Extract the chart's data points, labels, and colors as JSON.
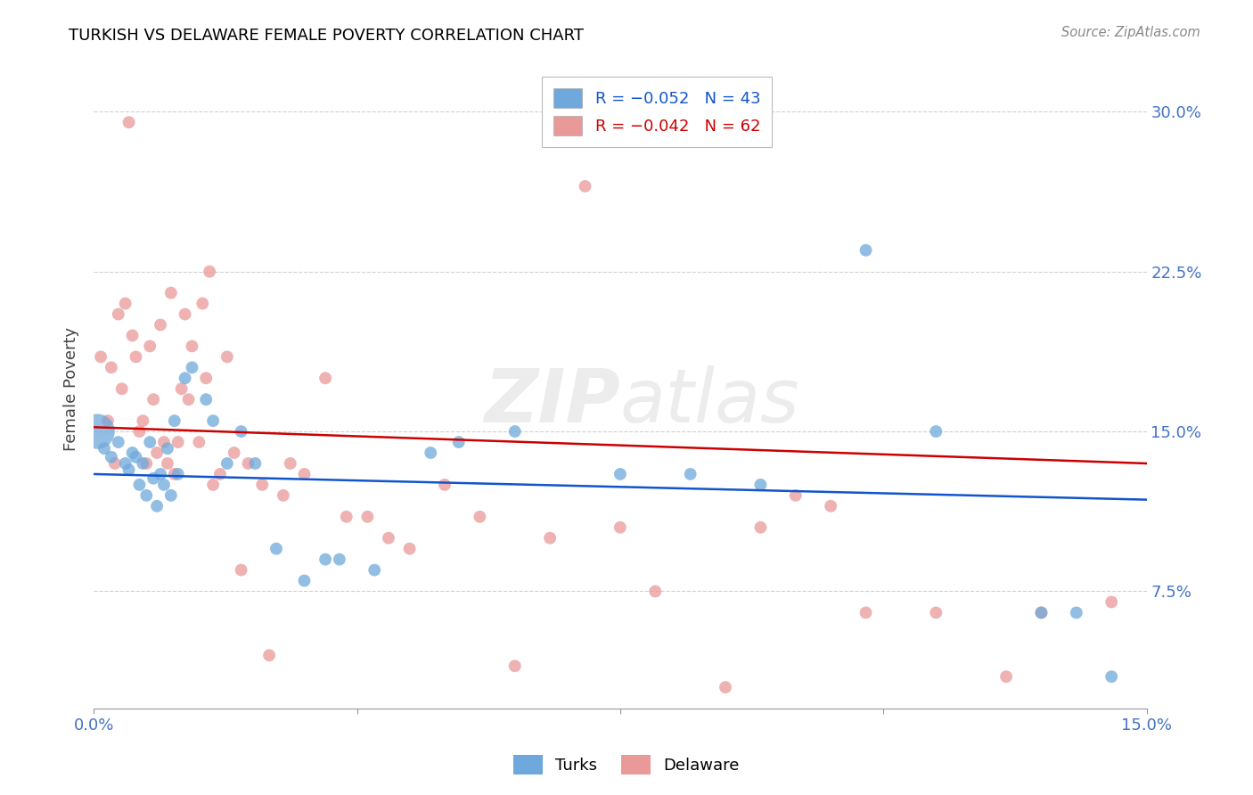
{
  "title": "TURKISH VS DELAWARE FEMALE POVERTY CORRELATION CHART",
  "source": "Source: ZipAtlas.com",
  "ylabel": "Female Poverty",
  "ytick_labels": [
    "7.5%",
    "15.0%",
    "22.5%",
    "30.0%"
  ],
  "ytick_values": [
    7.5,
    15.0,
    22.5,
    30.0
  ],
  "xlim": [
    0.0,
    15.0
  ],
  "ylim": [
    2.0,
    32.0
  ],
  "legend_blue_label": "Turks",
  "legend_pink_label": "Delaware",
  "blue_color": "#6fa8dc",
  "pink_color": "#ea9999",
  "blue_line_color": "#1155cc",
  "pink_line_color": "#cc0000",
  "background_color": "#ffffff",
  "title_color": "#000000",
  "axis_label_color": "#444444",
  "tick_label_color": "#4472c4",
  "turks_x": [
    0.05,
    0.15,
    0.25,
    0.35,
    0.45,
    0.5,
    0.55,
    0.6,
    0.65,
    0.7,
    0.75,
    0.8,
    0.85,
    0.9,
    0.95,
    1.0,
    1.05,
    1.1,
    1.15,
    1.2,
    1.3,
    1.4,
    1.6,
    1.7,
    1.9,
    2.1,
    2.3,
    2.6,
    3.0,
    3.3,
    3.5,
    4.0,
    4.8,
    5.2,
    6.0,
    7.5,
    8.5,
    9.5,
    11.0,
    12.0,
    13.5,
    14.0,
    14.5
  ],
  "turks_y": [
    15.0,
    14.2,
    13.8,
    14.5,
    13.5,
    13.2,
    14.0,
    13.8,
    12.5,
    13.5,
    12.0,
    14.5,
    12.8,
    11.5,
    13.0,
    12.5,
    14.2,
    12.0,
    15.5,
    13.0,
    17.5,
    18.0,
    16.5,
    15.5,
    13.5,
    15.0,
    13.5,
    9.5,
    8.0,
    9.0,
    9.0,
    8.5,
    14.0,
    14.5,
    15.0,
    13.0,
    13.0,
    12.5,
    23.5,
    15.0,
    6.5,
    6.5,
    3.5
  ],
  "turks_sizes": [
    800,
    100,
    100,
    100,
    100,
    100,
    100,
    100,
    100,
    100,
    100,
    100,
    100,
    100,
    100,
    100,
    100,
    100,
    100,
    100,
    100,
    100,
    100,
    100,
    100,
    100,
    100,
    100,
    100,
    100,
    100,
    100,
    100,
    100,
    100,
    100,
    100,
    100,
    100,
    100,
    100,
    100,
    100
  ],
  "delaware_x": [
    0.1,
    0.2,
    0.25,
    0.3,
    0.35,
    0.4,
    0.45,
    0.5,
    0.55,
    0.6,
    0.65,
    0.7,
    0.75,
    0.8,
    0.85,
    0.9,
    0.95,
    1.0,
    1.05,
    1.1,
    1.15,
    1.2,
    1.25,
    1.3,
    1.35,
    1.4,
    1.5,
    1.55,
    1.6,
    1.65,
    1.7,
    1.8,
    1.9,
    2.0,
    2.1,
    2.2,
    2.4,
    2.5,
    2.7,
    2.8,
    3.0,
    3.3,
    3.6,
    3.9,
    4.2,
    4.5,
    5.0,
    5.5,
    6.0,
    6.5,
    7.0,
    7.5,
    8.0,
    9.0,
    9.5,
    10.0,
    10.5,
    11.0,
    12.0,
    13.0,
    13.5,
    14.5
  ],
  "delaware_y": [
    18.5,
    15.5,
    18.0,
    13.5,
    20.5,
    17.0,
    21.0,
    29.5,
    19.5,
    18.5,
    15.0,
    15.5,
    13.5,
    19.0,
    16.5,
    14.0,
    20.0,
    14.5,
    13.5,
    21.5,
    13.0,
    14.5,
    17.0,
    20.5,
    16.5,
    19.0,
    14.5,
    21.0,
    17.5,
    22.5,
    12.5,
    13.0,
    18.5,
    14.0,
    8.5,
    13.5,
    12.5,
    4.5,
    12.0,
    13.5,
    13.0,
    17.5,
    11.0,
    11.0,
    10.0,
    9.5,
    12.5,
    11.0,
    4.0,
    10.0,
    26.5,
    10.5,
    7.5,
    3.0,
    10.5,
    12.0,
    11.5,
    6.5,
    6.5,
    3.5,
    6.5,
    7.0
  ],
  "delaware_sizes": [
    100,
    100,
    100,
    100,
    100,
    100,
    100,
    100,
    100,
    100,
    100,
    100,
    100,
    100,
    100,
    100,
    100,
    100,
    100,
    100,
    100,
    100,
    100,
    100,
    100,
    100,
    100,
    100,
    100,
    100,
    100,
    100,
    100,
    100,
    100,
    100,
    100,
    100,
    100,
    100,
    100,
    100,
    100,
    100,
    100,
    100,
    100,
    100,
    100,
    100,
    100,
    100,
    100,
    100,
    100,
    100,
    100,
    100,
    100,
    100,
    100,
    100
  ],
  "blue_trendline_start_y": 13.0,
  "blue_trendline_end_y": 11.8,
  "pink_trendline_start_y": 15.2,
  "pink_trendline_end_y": 13.5
}
